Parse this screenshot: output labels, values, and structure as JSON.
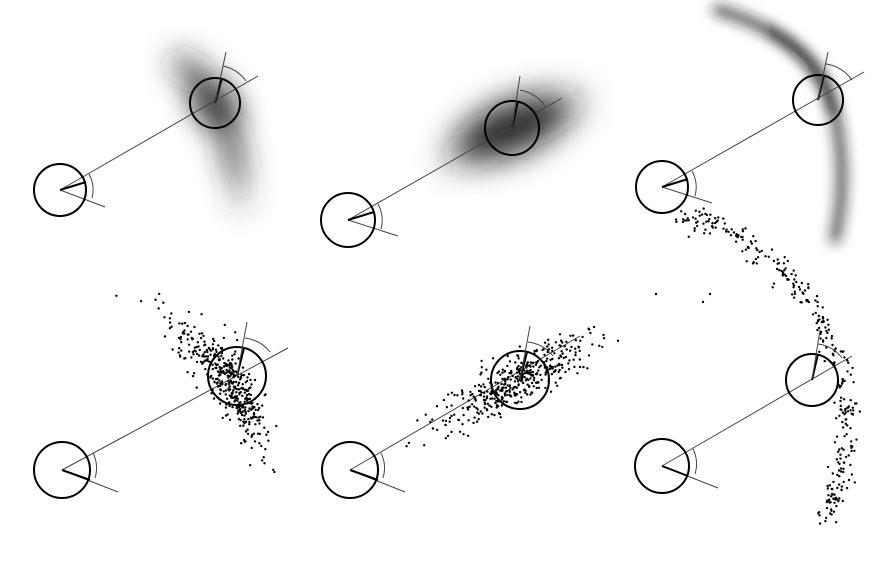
{
  "figure": {
    "panels": [
      {
        "id": "density-a",
        "kind": "density",
        "distribution": "banana-tilted"
      },
      {
        "id": "density-b",
        "kind": "density",
        "distribution": "elongated-gaussian"
      },
      {
        "id": "density-c",
        "kind": "density",
        "distribution": "arc"
      },
      {
        "id": "samples-a",
        "kind": "samples",
        "distribution": "banana-tilted",
        "point_count": 420
      },
      {
        "id": "samples-b",
        "kind": "samples",
        "distribution": "elongated-gaussian",
        "point_count": 420
      },
      {
        "id": "samples-c",
        "kind": "samples",
        "distribution": "arc",
        "point_count": 320
      }
    ],
    "colors": {
      "ink": "#000000",
      "shade": "#1a1a1a",
      "line": "#444444",
      "background": "#ffffff"
    }
  }
}
